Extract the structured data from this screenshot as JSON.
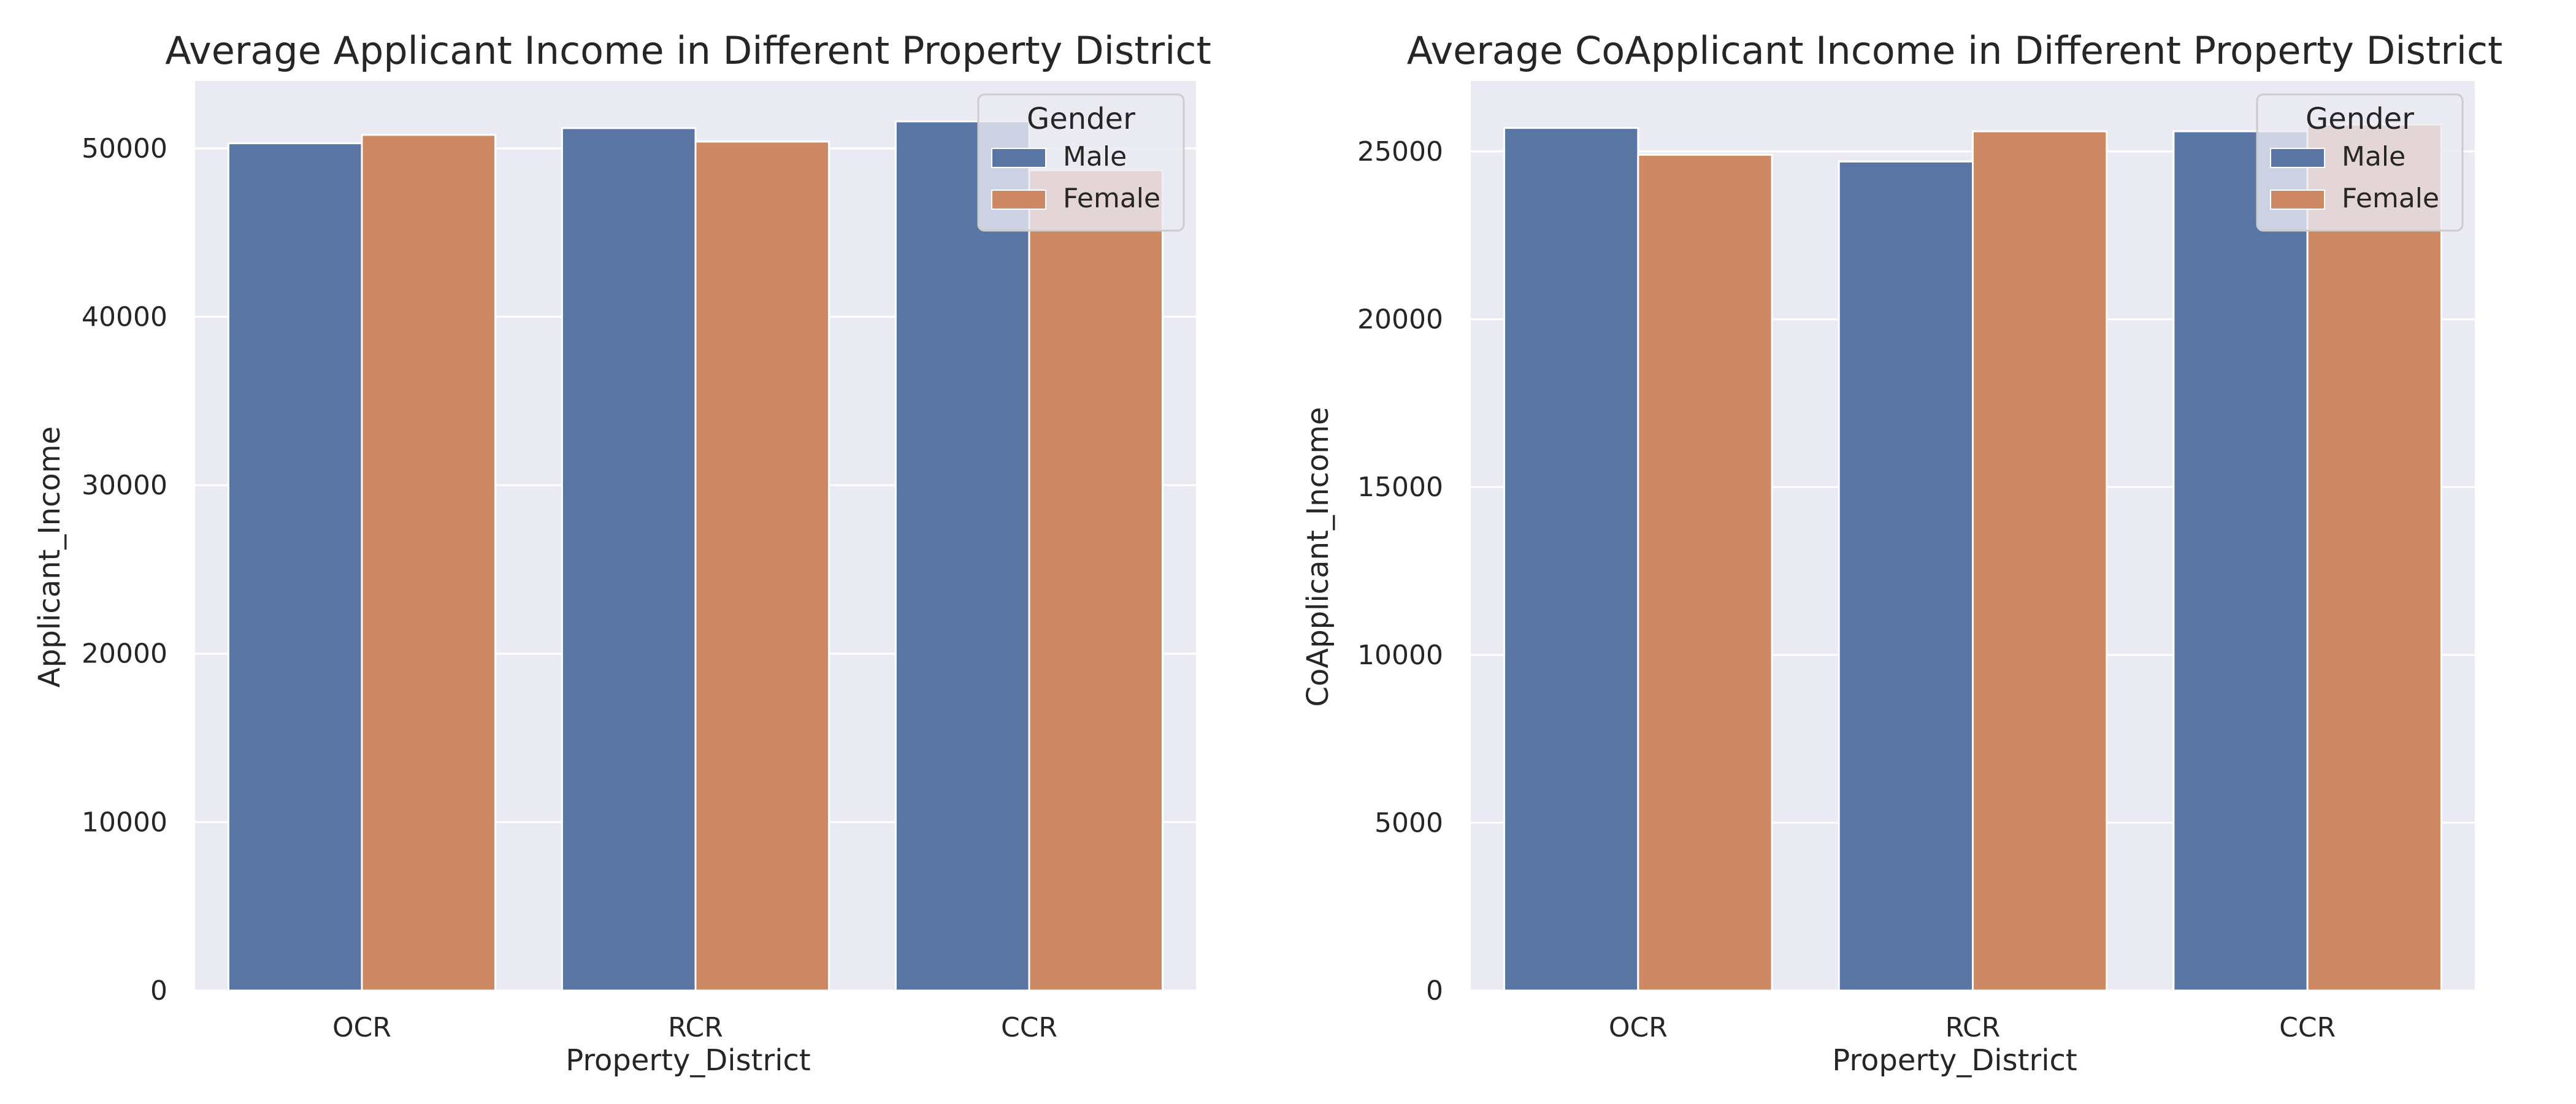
{
  "colors": {
    "male": "#5875a4",
    "female": "#cc8963",
    "panel": "#eaeaf2",
    "grid": "#ffffff"
  },
  "chart_data": [
    {
      "type": "bar",
      "title": "Average Applicant Income in Different Property District",
      "xlabel": "Property_District",
      "ylabel": "Applicant_Income",
      "categories": [
        "OCR",
        "RCR",
        "CCR"
      ],
      "series": [
        {
          "name": "Male",
          "values": [
            50300,
            51200,
            51600
          ]
        },
        {
          "name": "Female",
          "values": [
            50800,
            50400,
            48700
          ]
        }
      ],
      "ylim": [
        0,
        54000
      ],
      "yticks": [
        0,
        10000,
        20000,
        30000,
        40000,
        50000
      ],
      "legend": {
        "title": "Gender",
        "position": "top-right"
      },
      "grid": true
    },
    {
      "type": "bar",
      "title": "Average CoApplicant Income in Different Property District",
      "xlabel": "Property_District",
      "ylabel": "CoApplicant_Income",
      "categories": [
        "OCR",
        "RCR",
        "CCR"
      ],
      "series": [
        {
          "name": "Male",
          "values": [
            25700,
            24700,
            25600
          ]
        },
        {
          "name": "Female",
          "values": [
            24900,
            25600,
            25800
          ]
        }
      ],
      "ylim": [
        0,
        27100
      ],
      "yticks": [
        0,
        5000,
        10000,
        15000,
        20000,
        25000
      ],
      "legend": {
        "title": "Gender",
        "position": "top-right"
      },
      "grid": true
    }
  ]
}
